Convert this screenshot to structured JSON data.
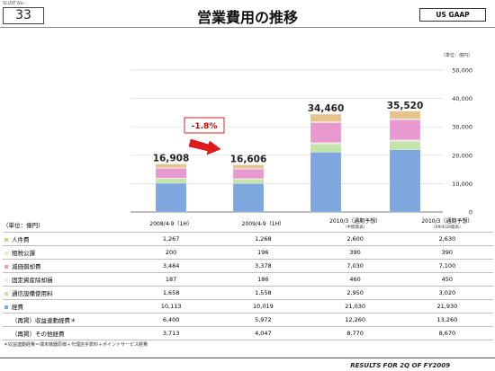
{
  "header": {
    "slide_no_label": "SLIDE No.",
    "slide_no": "33",
    "title": "営業費用の推移",
    "badge": "US GAAP"
  },
  "footer": {
    "text": "RESULTS FOR 2Q OF FY2009",
    "note": "＊収益連動経費＝端末機器原価＋代理店手数料＋ポイントサービス経費"
  },
  "chart_data": {
    "type": "bar",
    "stacked": true,
    "unit_label": "（単位：億円）",
    "categories": [
      "2008/4-9（1H）",
      "2009/4-9（1H）",
      "2010/3（通期予想）",
      "2010/3（通期予想）"
    ],
    "category_subtitles": [
      "",
      "",
      "（中間発表）",
      "（09/4/28発表）"
    ],
    "ylim": [
      0,
      50000
    ],
    "yticks": [
      "0",
      "10,000",
      "20,000",
      "30,000",
      "40,000",
      "50,000"
    ],
    "ytick_values": [
      0,
      10000,
      20000,
      30000,
      40000,
      50000
    ],
    "totals": [
      "16,908",
      "16,606",
      "34,460",
      "35,520"
    ],
    "total_values": [
      16908,
      16606,
      34460,
      35520
    ],
    "change_label": "-1.8%",
    "series": [
      {
        "name": "経費",
        "values": [
          10113,
          10019,
          21030,
          21930
        ],
        "color": "#7fa7df"
      },
      {
        "name": "通信設備使用料",
        "values": [
          1658,
          1558,
          2950,
          3020
        ],
        "color": "#c4e3a8"
      },
      {
        "name": "固定資産除却損",
        "values": [
          187,
          186,
          460,
          450
        ],
        "color": "#ececec"
      },
      {
        "name": "減価償却費",
        "values": [
          3484,
          3378,
          7030,
          7100
        ],
        "color": "#e89ad0"
      },
      {
        "name": "租税公課",
        "values": [
          200,
          196,
          390,
          390
        ],
        "color": "#f5e6c8"
      },
      {
        "name": "人件費",
        "values": [
          1267,
          1268,
          2600,
          2630
        ],
        "color": "#e5c28e"
      }
    ]
  },
  "table": {
    "header_label": "（単位：億円）",
    "rows": [
      {
        "label": "人件費",
        "color": "#e5c28e",
        "values": [
          "1,267",
          "1,268",
          "2,600",
          "2,630"
        ]
      },
      {
        "label": "租税公課",
        "color": "#f5e6c8",
        "values": [
          "200",
          "196",
          "390",
          "390"
        ]
      },
      {
        "label": "減価償却費",
        "color": "#e89ad0",
        "values": [
          "3,484",
          "3,378",
          "7,030",
          "7,100"
        ]
      },
      {
        "label": "固定資産除却損",
        "color": "#ececec",
        "values": [
          "187",
          "186",
          "460",
          "450"
        ]
      },
      {
        "label": "通信設備使用料",
        "color": "#c4e3a8",
        "values": [
          "1,658",
          "1,558",
          "2,950",
          "3,020"
        ]
      },
      {
        "label": "経費",
        "color": "#7fa7df",
        "values": [
          "10,113",
          "10,019",
          "21,030",
          "21,930"
        ]
      },
      {
        "label": "（再掲）収益連動経費＊",
        "color": "",
        "values": [
          "6,400",
          "5,972",
          "12,260",
          "13,260"
        ]
      },
      {
        "label": "（再掲）その他経費",
        "color": "",
        "values": [
          "3,713",
          "4,047",
          "8,770",
          "8,670"
        ]
      }
    ]
  }
}
